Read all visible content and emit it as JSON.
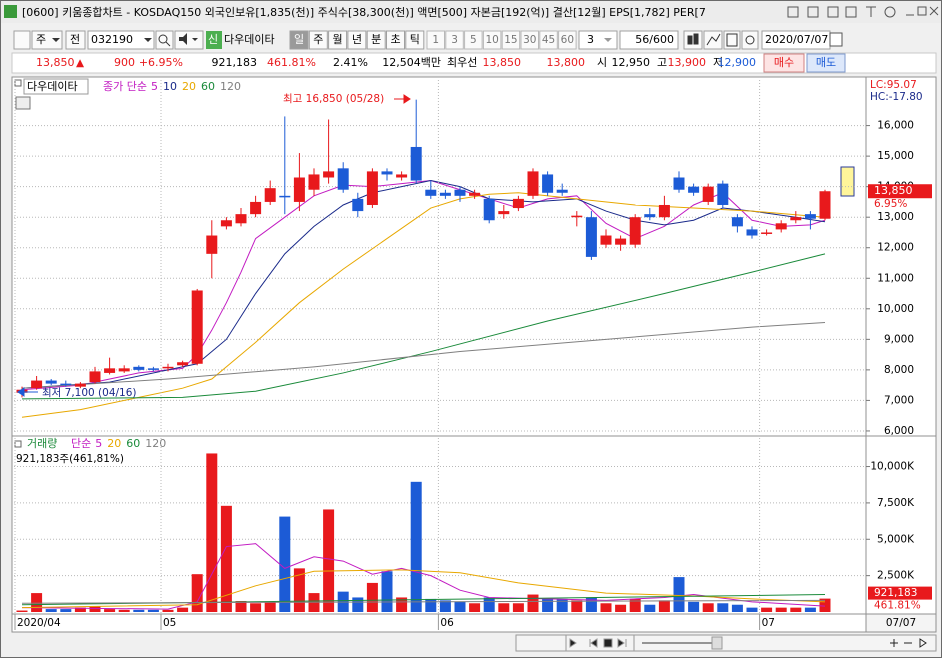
{
  "window": {
    "title": "[0600] 키움종합차트 - KOSDAQ150 외국인보유[1,835(천)] 주식수[38,300(천)] 액면[500] 자본금[192(억)] 결산[12월] EPS[1,782] PER[7"
  },
  "toolbar": {
    "market": "주",
    "prev": "전",
    "code": "032190",
    "new": "신",
    "name": "다우데이타",
    "periods": [
      "일",
      "주",
      "월",
      "년",
      "분",
      "초",
      "틱"
    ],
    "intervals": [
      "1",
      "3",
      "5",
      "10",
      "15",
      "30",
      "45",
      "60"
    ],
    "interval_input": "3",
    "count": "56/600",
    "date": "2020/07/07"
  },
  "info": {
    "price": "13,850",
    "arrow": "▲",
    "change": "900",
    "change_pct": "+6.95%",
    "volume": "921,183",
    "volume_pct": "461.81%",
    "turnover": "2.41%",
    "amount": "12,504백만",
    "best_label": "최우선",
    "ask": "13,850",
    "bid": "13,800",
    "open_label": "시",
    "open": "12,950",
    "high_label": "고",
    "high": "13,900",
    "low_label": "저",
    "low": "12,900",
    "buy": "매수",
    "sell": "매도"
  },
  "chart_data": [
    {
      "type": "candlestick",
      "title": "다우데이타",
      "ma_label": "종가 단순",
      "open": [
        7250,
        7400,
        7650,
        7550,
        7450,
        7600,
        7900,
        7950,
        8100,
        8050,
        8050,
        8150,
        8200,
        11800,
        12700,
        12800,
        13100,
        13500,
        13700,
        13500,
        13900,
        14300,
        14600,
        13600,
        13400,
        14500,
        14300,
        15300,
        13900,
        13800,
        13900,
        13700,
        13600,
        13100,
        13300,
        13700,
        14400,
        13900,
        13000,
        13000,
        12100,
        12100,
        12100,
        13100,
        13000,
        14300,
        14000,
        13500,
        14100,
        13000,
        12600,
        12500,
        12600,
        12900,
        13100,
        12950
      ],
      "high": [
        7450,
        7800,
        7700,
        7650,
        7600,
        8100,
        8400,
        8150,
        8150,
        8100,
        8200,
        8300,
        10650,
        12900,
        13000,
        13300,
        13700,
        14200,
        16300,
        15100,
        14600,
        16200,
        14800,
        13800,
        14600,
        14600,
        14500,
        16850,
        14200,
        13900,
        14000,
        13900,
        13700,
        13400,
        13700,
        14600,
        14500,
        14100,
        13200,
        13200,
        12600,
        12400,
        13100,
        13300,
        13700,
        14500,
        14100,
        14100,
        14200,
        13100,
        12700,
        12600,
        12900,
        13200,
        13200,
        13900
      ],
      "low": [
        7100,
        7350,
        7500,
        7450,
        7400,
        7550,
        7850,
        7900,
        7950,
        7950,
        7950,
        8100,
        8150,
        11000,
        12600,
        12700,
        13000,
        13400,
        13100,
        13200,
        13700,
        14100,
        13800,
        13000,
        13300,
        14200,
        14200,
        14100,
        13600,
        13600,
        13500,
        13600,
        12800,
        12950,
        13200,
        13600,
        13700,
        13700,
        12700,
        11600,
        12000,
        11900,
        12000,
        12900,
        12900,
        13800,
        13700,
        13400,
        13300,
        12500,
        12300,
        12400,
        12500,
        12800,
        12600,
        12900
      ],
      "close": [
        7350,
        7650,
        7550,
        7500,
        7550,
        7950,
        8050,
        8050,
        8000,
        8000,
        8100,
        8250,
        10600,
        12400,
        12900,
        13100,
        13500,
        13950,
        13650,
        14300,
        14400,
        14500,
        13900,
        13200,
        14500,
        14400,
        14400,
        14200,
        13700,
        13700,
        13700,
        13800,
        12900,
        13200,
        13600,
        14500,
        13800,
        13800,
        13050,
        11700,
        12400,
        12300,
        13000,
        13000,
        13400,
        13900,
        13800,
        14000,
        13400,
        12700,
        12400,
        12500,
        12800,
        13000,
        12950,
        13850
      ],
      "up_color": "#e8191c",
      "down_color": "#1c5bd6",
      "ylim": [
        5900,
        17100
      ],
      "yticks": [
        {
          "value": 6000,
          "label": "6,000"
        },
        {
          "value": 7000,
          "label": "7,000"
        },
        {
          "value": 8000,
          "label": "8,000"
        },
        {
          "value": 9000,
          "label": "9,000"
        },
        {
          "value": 10000,
          "label": "10,000"
        },
        {
          "value": 11000,
          "label": "11,000"
        },
        {
          "value": 12000,
          "label": "12,000"
        },
        {
          "value": 13000,
          "label": "13,000"
        },
        {
          "value": 14000,
          "label": "14,000"
        },
        {
          "value": 15000,
          "label": "15,000"
        },
        {
          "value": 16000,
          "label": "16,000"
        }
      ],
      "grid": true,
      "series": [
        {
          "name": "5",
          "color": "#c21bc2",
          "x": [
            0,
            4,
            8,
            11,
            12,
            13,
            14,
            15,
            16,
            18,
            20,
            22,
            24,
            26,
            28,
            30,
            32,
            34,
            36,
            38,
            40,
            42,
            44,
            46,
            48,
            50,
            52,
            54,
            55
          ],
          "values": [
            7350,
            7500,
            7900,
            8050,
            8500,
            9300,
            10200,
            11200,
            12300,
            13000,
            13700,
            14050,
            14000,
            14100,
            14200,
            13900,
            13600,
            13300,
            13600,
            13700,
            12800,
            12300,
            12700,
            13400,
            13800,
            12900,
            12700,
            12750,
            12900
          ]
        },
        {
          "name": "10",
          "color": "#1a2a8a",
          "x": [
            0,
            6,
            10,
            12,
            14,
            16,
            18,
            20,
            22,
            24,
            26,
            28,
            30,
            32,
            35,
            38,
            40,
            42,
            44,
            46,
            48,
            50,
            53,
            55
          ],
          "values": [
            7400,
            7600,
            8000,
            8200,
            9000,
            10500,
            11800,
            12700,
            13400,
            13800,
            14000,
            14200,
            14000,
            13600,
            13500,
            13600,
            13200,
            12900,
            12750,
            12900,
            13300,
            13200,
            13000,
            12850
          ]
        },
        {
          "name": "20",
          "color": "#e8a800",
          "x": [
            0,
            4,
            8,
            11,
            13,
            16,
            19,
            22,
            25,
            28,
            30,
            32,
            34,
            38,
            42,
            46,
            50,
            55
          ],
          "values": [
            6450,
            6700,
            7100,
            7400,
            7700,
            8900,
            10200,
            11300,
            12300,
            13300,
            13600,
            13750,
            13800,
            13600,
            13400,
            13300,
            13200,
            13000
          ]
        },
        {
          "name": "60",
          "color": "#1a8a3a",
          "x": [
            0,
            11,
            16,
            22,
            28,
            36,
            44,
            50,
            55
          ],
          "values": [
            7050,
            7100,
            7300,
            7900,
            8600,
            9600,
            10500,
            11200,
            11800
          ]
        },
        {
          "name": "120",
          "color": "#808080",
          "x": [
            0,
            10,
            20,
            30,
            40,
            50,
            55
          ],
          "values": [
            7400,
            7700,
            8100,
            8600,
            9000,
            9400,
            9550
          ]
        }
      ],
      "annotations": [
        "최고 16,850 (05/28)",
        "최저 7,100 (04/16)"
      ],
      "last_value_label": "13,850",
      "last_change_label": "6.95%",
      "lc_label": "LC:95.07",
      "hc_label": "HC:-17.80"
    },
    {
      "type": "bar",
      "title": "거래량",
      "ma_label": "단순",
      "categories": [
        "2020/04",
        null,
        null,
        null,
        null,
        null,
        null,
        null,
        null,
        null,
        "05",
        null,
        null,
        null,
        null,
        null,
        null,
        null,
        null,
        null,
        null,
        null,
        null,
        null,
        null,
        null,
        null,
        null,
        null,
        "06",
        null,
        null,
        null,
        null,
        null,
        null,
        null,
        null,
        null,
        null,
        null,
        null,
        null,
        null,
        null,
        null,
        null,
        null,
        null,
        null,
        null,
        "07",
        null,
        null,
        null,
        "07/07"
      ],
      "values": [
        100,
        1300,
        200,
        200,
        300,
        400,
        200,
        150,
        150,
        150,
        150,
        300,
        2600,
        10900,
        7300,
        750,
        600,
        700,
        6560,
        3000,
        1300,
        7050,
        1400,
        1000,
        2000,
        2800,
        1000,
        8950,
        900,
        800,
        700,
        600,
        1000,
        600,
        600,
        1200,
        900,
        900,
        800,
        1000,
        600,
        500,
        900,
        500,
        800,
        2400,
        700,
        600,
        600,
        500,
        300,
        300,
        300,
        300,
        300,
        921.183
      ],
      "ylim": [
        0,
        11000
      ],
      "yticks": [
        {
          "value": 2500,
          "label": "2,500K"
        },
        {
          "value": 5000,
          "label": "5,000K"
        },
        {
          "value": 7500,
          "label": "7,500K"
        },
        {
          "value": 10000,
          "label": "10,000K"
        }
      ],
      "grid": true,
      "series": [
        {
          "name": "5",
          "color": "#c21bc2",
          "x": [
            0,
            10,
            12,
            14,
            16,
            18,
            20,
            22,
            24,
            26,
            28,
            30,
            32,
            36,
            40,
            44,
            46,
            50,
            55
          ],
          "values": [
            300,
            200,
            700,
            4500,
            4700,
            3000,
            3800,
            3500,
            2600,
            3000,
            2500,
            1500,
            1000,
            900,
            800,
            1000,
            1200,
            700,
            400
          ]
        },
        {
          "name": "20",
          "color": "#e8a800",
          "x": [
            0,
            12,
            16,
            20,
            26,
            30,
            34,
            40,
            46,
            50,
            55
          ],
          "values": [
            300,
            500,
            1800,
            2800,
            2900,
            2700,
            2000,
            1300,
            1100,
            900,
            700
          ]
        },
        {
          "name": "60",
          "color": "#1a8a3a",
          "x": [
            0,
            55
          ],
          "values": [
            500,
            1200
          ]
        },
        {
          "name": "120",
          "color": "#808080",
          "x": [
            0,
            55
          ],
          "values": [
            600,
            800
          ]
        }
      ],
      "current_label": "921,183주(461,81%)",
      "last_value_label": "921,183",
      "last_pct_label": "461.81%"
    }
  ]
}
